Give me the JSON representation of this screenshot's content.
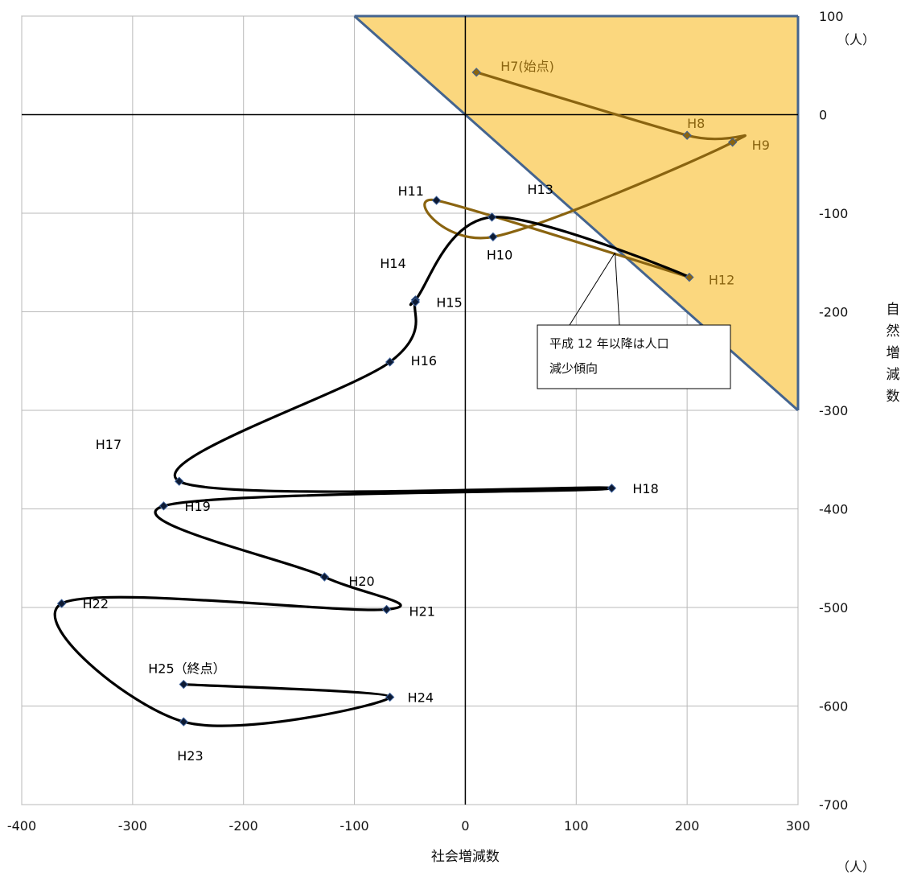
{
  "chart_data": {
    "type": "scatter",
    "xlabel": "社会増減数",
    "ylabel": "自然増減数",
    "x_unit": "（人）",
    "y_unit": "（人）",
    "xlim": [
      -400,
      300
    ],
    "ylim": [
      -700,
      100
    ],
    "x_ticks": [
      "-400",
      "-300",
      "-200",
      "-100",
      "0",
      "100",
      "200",
      "300"
    ],
    "y_ticks": [
      "100",
      "0",
      "-100",
      "-200",
      "-300",
      "-400",
      "-500",
      "-600",
      "-700"
    ],
    "grid": true,
    "region": {
      "description": "人口増加域",
      "boundary": "y = -x",
      "color": "#fbd77e",
      "edge_color": "#44648f"
    },
    "series": [
      {
        "points": [
          {
            "label": "H7(始点)",
            "x": 10,
            "y": 43
          },
          {
            "label": "H8",
            "x": 200,
            "y": -21
          },
          {
            "label": "H9",
            "x": 241,
            "y": -28
          },
          {
            "label": "H10",
            "x": 25,
            "y": -124
          },
          {
            "label": "H11",
            "x": -26,
            "y": -87
          },
          {
            "label": "H12",
            "x": 202,
            "y": -165
          },
          {
            "label": "H13",
            "x": 24,
            "y": -104
          },
          {
            "label": "H14",
            "x": -45,
            "y": -188
          },
          {
            "label": "H15",
            "x": -45,
            "y": -190
          },
          {
            "label": "H16",
            "x": -68,
            "y": -251
          },
          {
            "label": "H17",
            "x": -258,
            "y": -372
          },
          {
            "label": "H18",
            "x": 132,
            "y": -379
          },
          {
            "label": "H19",
            "x": -272,
            "y": -397
          },
          {
            "label": "H20",
            "x": -127,
            "y": -469
          },
          {
            "label": "H21",
            "x": -71,
            "y": -502
          },
          {
            "label": "H22",
            "x": -364,
            "y": -496
          },
          {
            "label": "H23",
            "x": -254,
            "y": -616
          },
          {
            "label": "H24",
            "x": -68,
            "y": -591
          },
          {
            "label": "H25（終点）",
            "x": -254,
            "y": -578
          }
        ]
      }
    ],
    "annotation": {
      "line1": "平成 12 年以降は人口",
      "line2": "減少傾向",
      "target_x": 135,
      "target_y": -140
    },
    "colors": {
      "early": "#8a6410",
      "late": "#000000",
      "marker_edge": "#3b5f99",
      "grid": "#b9b9b9"
    }
  }
}
